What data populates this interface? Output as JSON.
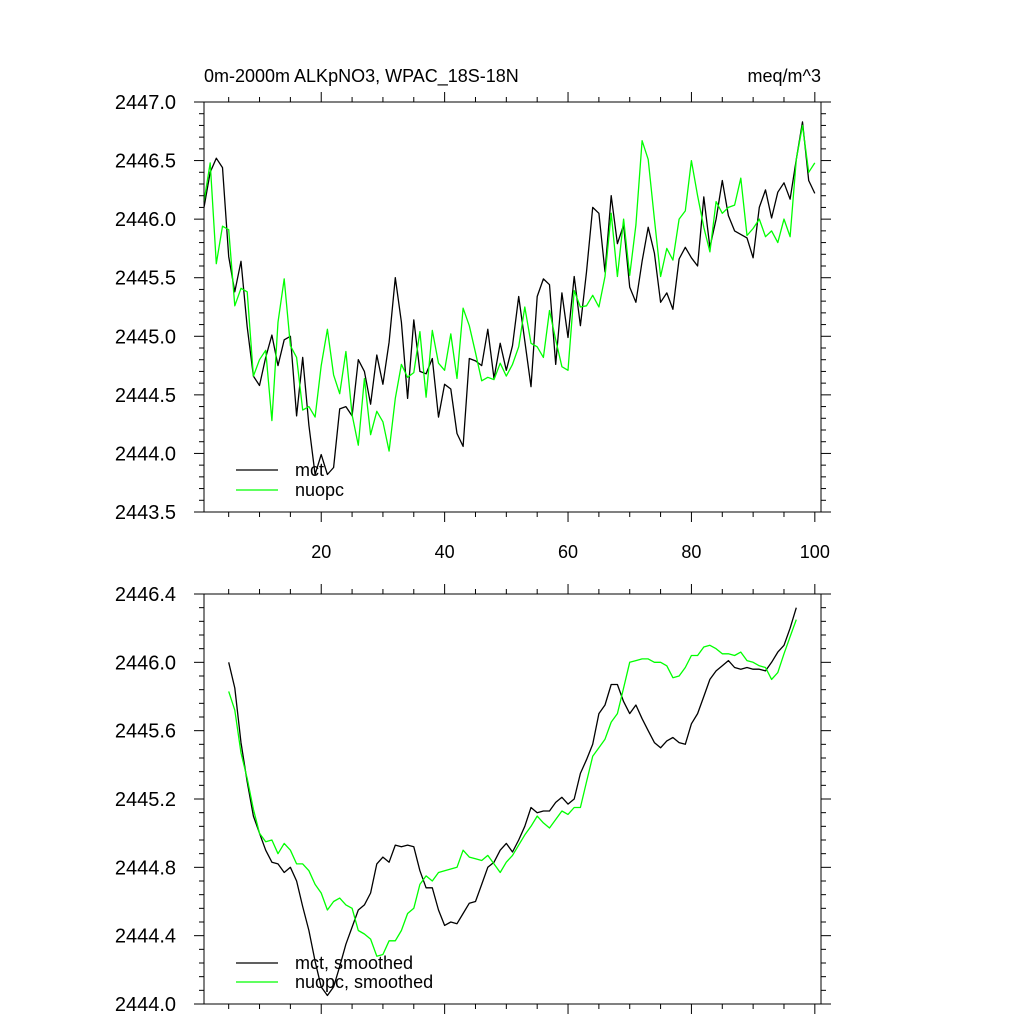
{
  "chart_data": [
    {
      "type": "line",
      "title_left": "0m-2000m ALKpNO3, WPAC_18S-18N",
      "title_right": "meq/m^3",
      "xlim": [
        1,
        101
      ],
      "ylim": [
        2443.5,
        2447.0
      ],
      "xticks": [
        20,
        40,
        60,
        80,
        100
      ],
      "xtick_labels": [
        "20",
        "40",
        "60",
        "80",
        "100"
      ],
      "yticks": [
        2443.5,
        2444.0,
        2444.5,
        2445.0,
        2445.5,
        2446.0,
        2446.5,
        2447.0
      ],
      "ytick_labels": [
        "2443.5",
        "2444.0",
        "2444.5",
        "2445.0",
        "2445.5",
        "2446.0",
        "2446.5",
        "2447.0"
      ],
      "legend_position": "bottom-left",
      "series": [
        {
          "name": "mct",
          "color": "#000000",
          "x": [
            1,
            2,
            3,
            4,
            5,
            6,
            7,
            8,
            9,
            10,
            11,
            12,
            13,
            14,
            15,
            16,
            17,
            18,
            19,
            20,
            21,
            22,
            23,
            24,
            25,
            26,
            27,
            28,
            29,
            30,
            31,
            32,
            33,
            34,
            35,
            36,
            37,
            38,
            39,
            40,
            41,
            42,
            43,
            44,
            45,
            46,
            47,
            48,
            49,
            50,
            51,
            52,
            53,
            54,
            55,
            56,
            57,
            58,
            59,
            60,
            61,
            62,
            63,
            64,
            65,
            66,
            67,
            68,
            69,
            70,
            71,
            72,
            73,
            74,
            75,
            76,
            77,
            78,
            79,
            80,
            81,
            82,
            83,
            84,
            85,
            86,
            87,
            88,
            89,
            90,
            91,
            92,
            93,
            94,
            95,
            96,
            97,
            98,
            99,
            100
          ],
          "values": [
            2446.1,
            2446.4,
            2446.52,
            2446.44,
            2445.68,
            2445.38,
            2445.64,
            2445.08,
            2444.66,
            2444.58,
            2444.82,
            2445.01,
            2444.75,
            2444.97,
            2445.0,
            2444.32,
            2444.82,
            2444.24,
            2443.82,
            2443.99,
            2443.82,
            2443.88,
            2444.38,
            2444.4,
            2444.32,
            2444.8,
            2444.7,
            2444.42,
            2444.84,
            2444.59,
            2444.95,
            2445.5,
            2445.12,
            2444.47,
            2445.14,
            2444.7,
            2444.68,
            2444.81,
            2444.31,
            2444.59,
            2444.55,
            2444.17,
            2444.06,
            2444.81,
            2444.79,
            2444.75,
            2445.06,
            2444.64,
            2444.94,
            2444.71,
            2444.92,
            2445.34,
            2444.96,
            2444.57,
            2445.34,
            2445.49,
            2445.44,
            2444.76,
            2445.37,
            2444.99,
            2445.51,
            2445.09,
            2445.55,
            2446.1,
            2446.05,
            2445.55,
            2446.2,
            2445.79,
            2445.95,
            2445.42,
            2445.29,
            2445.64,
            2445.93,
            2445.71,
            2445.29,
            2445.37,
            2445.23,
            2445.66,
            2445.76,
            2445.67,
            2445.6,
            2446.19,
            2445.76,
            2446.0,
            2446.33,
            2446.03,
            2445.9,
            2445.87,
            2445.84,
            2445.67,
            2446.1,
            2446.25,
            2446.01,
            2446.23,
            2446.31,
            2446.17,
            2446.51,
            2446.83,
            2446.33,
            2446.22
          ]
        },
        {
          "name": "nuopc",
          "color": "#00ff00",
          "x": [
            1,
            2,
            3,
            4,
            5,
            6,
            7,
            8,
            9,
            10,
            11,
            12,
            13,
            14,
            15,
            16,
            17,
            18,
            19,
            20,
            21,
            22,
            23,
            24,
            25,
            26,
            27,
            28,
            29,
            30,
            31,
            32,
            33,
            34,
            35,
            36,
            37,
            38,
            39,
            40,
            41,
            42,
            43,
            44,
            45,
            46,
            47,
            48,
            49,
            50,
            51,
            52,
            53,
            54,
            55,
            56,
            57,
            58,
            59,
            60,
            61,
            62,
            63,
            64,
            65,
            66,
            67,
            68,
            69,
            70,
            71,
            72,
            73,
            74,
            75,
            76,
            77,
            78,
            79,
            80,
            81,
            82,
            83,
            84,
            85,
            86,
            87,
            88,
            89,
            90,
            91,
            92,
            93,
            94,
            95,
            96,
            97,
            98,
            99,
            100
          ],
          "values": [
            2446.15,
            2446.48,
            2445.62,
            2445.94,
            2445.91,
            2445.26,
            2445.41,
            2445.38,
            2444.66,
            2444.8,
            2444.88,
            2444.28,
            2445.12,
            2445.49,
            2444.92,
            2444.82,
            2444.37,
            2444.4,
            2444.31,
            2444.75,
            2445.06,
            2444.67,
            2444.51,
            2444.87,
            2444.33,
            2444.07,
            2444.64,
            2444.16,
            2444.36,
            2444.27,
            2444.02,
            2444.47,
            2444.76,
            2444.65,
            2444.69,
            2445.04,
            2444.48,
            2445.05,
            2444.77,
            2444.71,
            2445.02,
            2444.64,
            2445.24,
            2445.09,
            2444.86,
            2444.62,
            2444.65,
            2444.63,
            2444.77,
            2444.66,
            2444.76,
            2444.91,
            2445.25,
            2444.94,
            2444.91,
            2444.82,
            2445.22,
            2444.97,
            2444.74,
            2444.71,
            2445.39,
            2445.25,
            2445.26,
            2445.35,
            2445.25,
            2445.51,
            2446.05,
            2445.51,
            2446.0,
            2445.52,
            2445.95,
            2446.67,
            2446.51,
            2446.0,
            2445.51,
            2445.75,
            2445.65,
            2446.0,
            2446.07,
            2446.5,
            2446.2,
            2445.93,
            2445.72,
            2446.15,
            2446.05,
            2446.1,
            2446.12,
            2446.35,
            2445.86,
            2445.92,
            2446.0,
            2445.85,
            2445.9,
            2445.8,
            2446.0,
            2445.85,
            2446.51,
            2446.8,
            2446.4,
            2446.48
          ]
        }
      ]
    },
    {
      "type": "line",
      "xlim": [
        1,
        101
      ],
      "ylim": [
        2444.0,
        2446.4
      ],
      "yticks": [
        2444.0,
        2444.4,
        2444.8,
        2445.2,
        2445.6,
        2446.0,
        2446.4
      ],
      "ytick_labels": [
        "2444.0",
        "2444.4",
        "2444.8",
        "2445.2",
        "2445.6",
        "2446.0",
        "2446.4"
      ],
      "legend_position": "bottom-left",
      "series": [
        {
          "name": "mct, smoothed",
          "color": "#000000",
          "x": [
            5,
            6,
            7,
            8,
            9,
            10,
            11,
            12,
            13,
            14,
            15,
            16,
            17,
            18,
            19,
            20,
            21,
            22,
            23,
            24,
            25,
            26,
            27,
            28,
            29,
            30,
            31,
            32,
            33,
            34,
            35,
            36,
            37,
            38,
            39,
            40,
            41,
            42,
            43,
            44,
            45,
            46,
            47,
            48,
            49,
            50,
            51,
            52,
            53,
            54,
            55,
            56,
            57,
            58,
            59,
            60,
            61,
            62,
            63,
            64,
            65,
            66,
            67,
            68,
            69,
            70,
            71,
            72,
            73,
            74,
            75,
            76,
            77,
            78,
            79,
            80,
            81,
            82,
            83,
            84,
            85,
            86,
            87,
            88,
            89,
            90,
            91,
            92,
            93,
            94,
            95,
            96,
            97
          ],
          "values": [
            2446.0,
            2445.85,
            2445.53,
            2445.3,
            2445.1,
            2445.0,
            2444.9,
            2444.83,
            2444.82,
            2444.77,
            2444.8,
            2444.72,
            2444.57,
            2444.43,
            2444.25,
            2444.1,
            2444.05,
            2444.1,
            2444.22,
            2444.35,
            2444.45,
            2444.55,
            2444.58,
            2444.65,
            2444.82,
            2444.86,
            2444.83,
            2444.93,
            2444.92,
            2444.93,
            2444.92,
            2444.78,
            2444.68,
            2444.68,
            2444.55,
            2444.46,
            2444.48,
            2444.47,
            2444.53,
            2444.59,
            2444.6,
            2444.7,
            2444.8,
            2444.83,
            2444.9,
            2444.94,
            2444.89,
            2444.96,
            2445.04,
            2445.15,
            2445.12,
            2445.13,
            2445.13,
            2445.18,
            2445.21,
            2445.17,
            2445.2,
            2445.35,
            2445.43,
            2445.52,
            2445.7,
            2445.75,
            2445.87,
            2445.87,
            2445.77,
            2445.7,
            2445.75,
            2445.67,
            2445.6,
            2445.53,
            2445.5,
            2445.54,
            2445.56,
            2445.53,
            2445.52,
            2445.64,
            2445.7,
            2445.8,
            2445.9,
            2445.95,
            2445.98,
            2446.01,
            2445.97,
            2445.96,
            2445.97,
            2445.96,
            2445.96,
            2445.95,
            2446.0,
            2446.06,
            2446.1,
            2446.2,
            2446.32
          ]
        },
        {
          "name": "nuopc, smoothed",
          "color": "#00ff00",
          "x": [
            5,
            6,
            7,
            8,
            9,
            10,
            11,
            12,
            13,
            14,
            15,
            16,
            17,
            18,
            19,
            20,
            21,
            22,
            23,
            24,
            25,
            26,
            27,
            28,
            29,
            30,
            31,
            32,
            33,
            34,
            35,
            36,
            37,
            38,
            39,
            40,
            41,
            42,
            43,
            44,
            45,
            46,
            47,
            48,
            49,
            50,
            51,
            52,
            53,
            54,
            55,
            56,
            57,
            58,
            59,
            60,
            61,
            62,
            63,
            64,
            65,
            66,
            67,
            68,
            69,
            70,
            71,
            72,
            73,
            74,
            75,
            76,
            77,
            78,
            79,
            80,
            81,
            82,
            83,
            84,
            85,
            86,
            87,
            88,
            89,
            90,
            91,
            92,
            93,
            94,
            95,
            96,
            97
          ],
          "values": [
            2445.83,
            2445.72,
            2445.47,
            2445.32,
            2445.14,
            2445.0,
            2444.95,
            2444.96,
            2444.88,
            2444.94,
            2444.9,
            2444.82,
            2444.82,
            2444.78,
            2444.7,
            2444.65,
            2444.55,
            2444.6,
            2444.62,
            2444.58,
            2444.56,
            2444.43,
            2444.41,
            2444.38,
            2444.28,
            2444.29,
            2444.37,
            2444.37,
            2444.43,
            2444.53,
            2444.56,
            2444.7,
            2444.75,
            2444.72,
            2444.77,
            2444.78,
            2444.79,
            2444.8,
            2444.9,
            2444.86,
            2444.85,
            2444.84,
            2444.87,
            2444.82,
            2444.77,
            2444.83,
            2444.87,
            2444.93,
            2444.99,
            2445.04,
            2445.1,
            2445.06,
            2445.03,
            2445.08,
            2445.13,
            2445.11,
            2445.15,
            2445.15,
            2445.3,
            2445.45,
            2445.5,
            2445.55,
            2445.65,
            2445.7,
            2445.85,
            2446.0,
            2446.01,
            2446.02,
            2446.02,
            2446.0,
            2446.0,
            2445.98,
            2445.91,
            2445.92,
            2445.97,
            2446.04,
            2446.04,
            2446.09,
            2446.1,
            2446.08,
            2446.05,
            2446.05,
            2446.04,
            2446.06,
            2446.01,
            2446.0,
            2445.98,
            2445.97,
            2445.9,
            2445.94,
            2446.05,
            2446.15,
            2446.25
          ]
        }
      ]
    }
  ]
}
